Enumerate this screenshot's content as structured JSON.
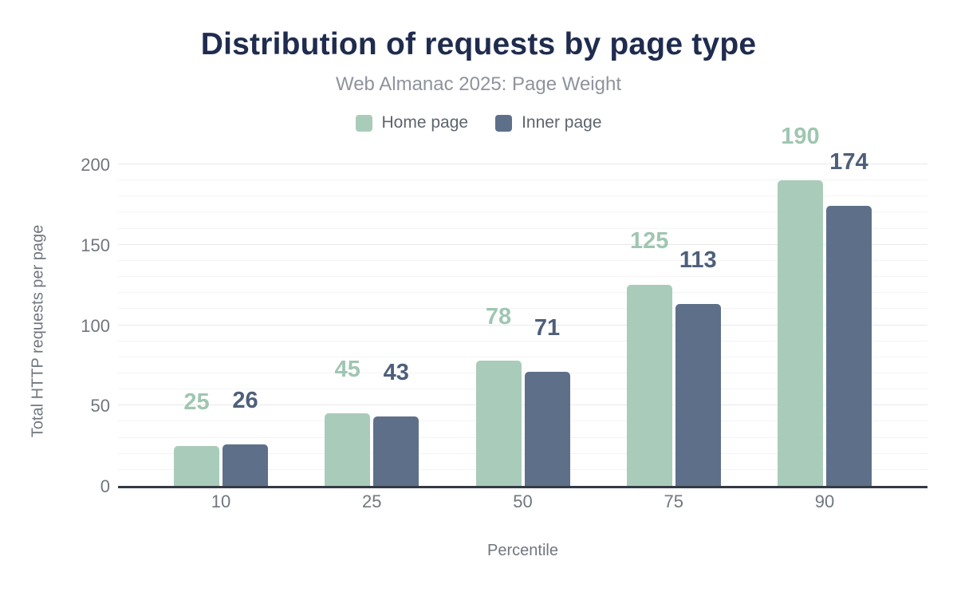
{
  "header": {
    "title": "Distribution of requests by page type",
    "subtitle": "Web Almanac 2025: Page Weight"
  },
  "chart_data": {
    "type": "bar",
    "title": "Distribution of requests by page type",
    "subtitle": "Web Almanac 2025: Page Weight",
    "categories": [
      "10",
      "25",
      "50",
      "75",
      "90"
    ],
    "series": [
      {
        "name": "Home page",
        "color": "#a9ccba",
        "label_color": "#9fc6b2",
        "values": [
          25,
          45,
          78,
          125,
          190
        ]
      },
      {
        "name": "Inner page",
        "color": "#5e7089",
        "label_color": "#4d5f7a",
        "values": [
          26,
          43,
          71,
          113,
          174
        ]
      }
    ],
    "xlabel": "Percentile",
    "ylabel": "Total HTTP requests per page",
    "ylim": [
      0,
      200
    ],
    "yticks": [
      0,
      50,
      100,
      150,
      200
    ],
    "minor_grid_step": 10,
    "major_grid_step": 50,
    "grid": "horizontal-only",
    "legend_position": "top",
    "axis_line_color": "#333a45",
    "tick_text_color": "#71767f"
  }
}
